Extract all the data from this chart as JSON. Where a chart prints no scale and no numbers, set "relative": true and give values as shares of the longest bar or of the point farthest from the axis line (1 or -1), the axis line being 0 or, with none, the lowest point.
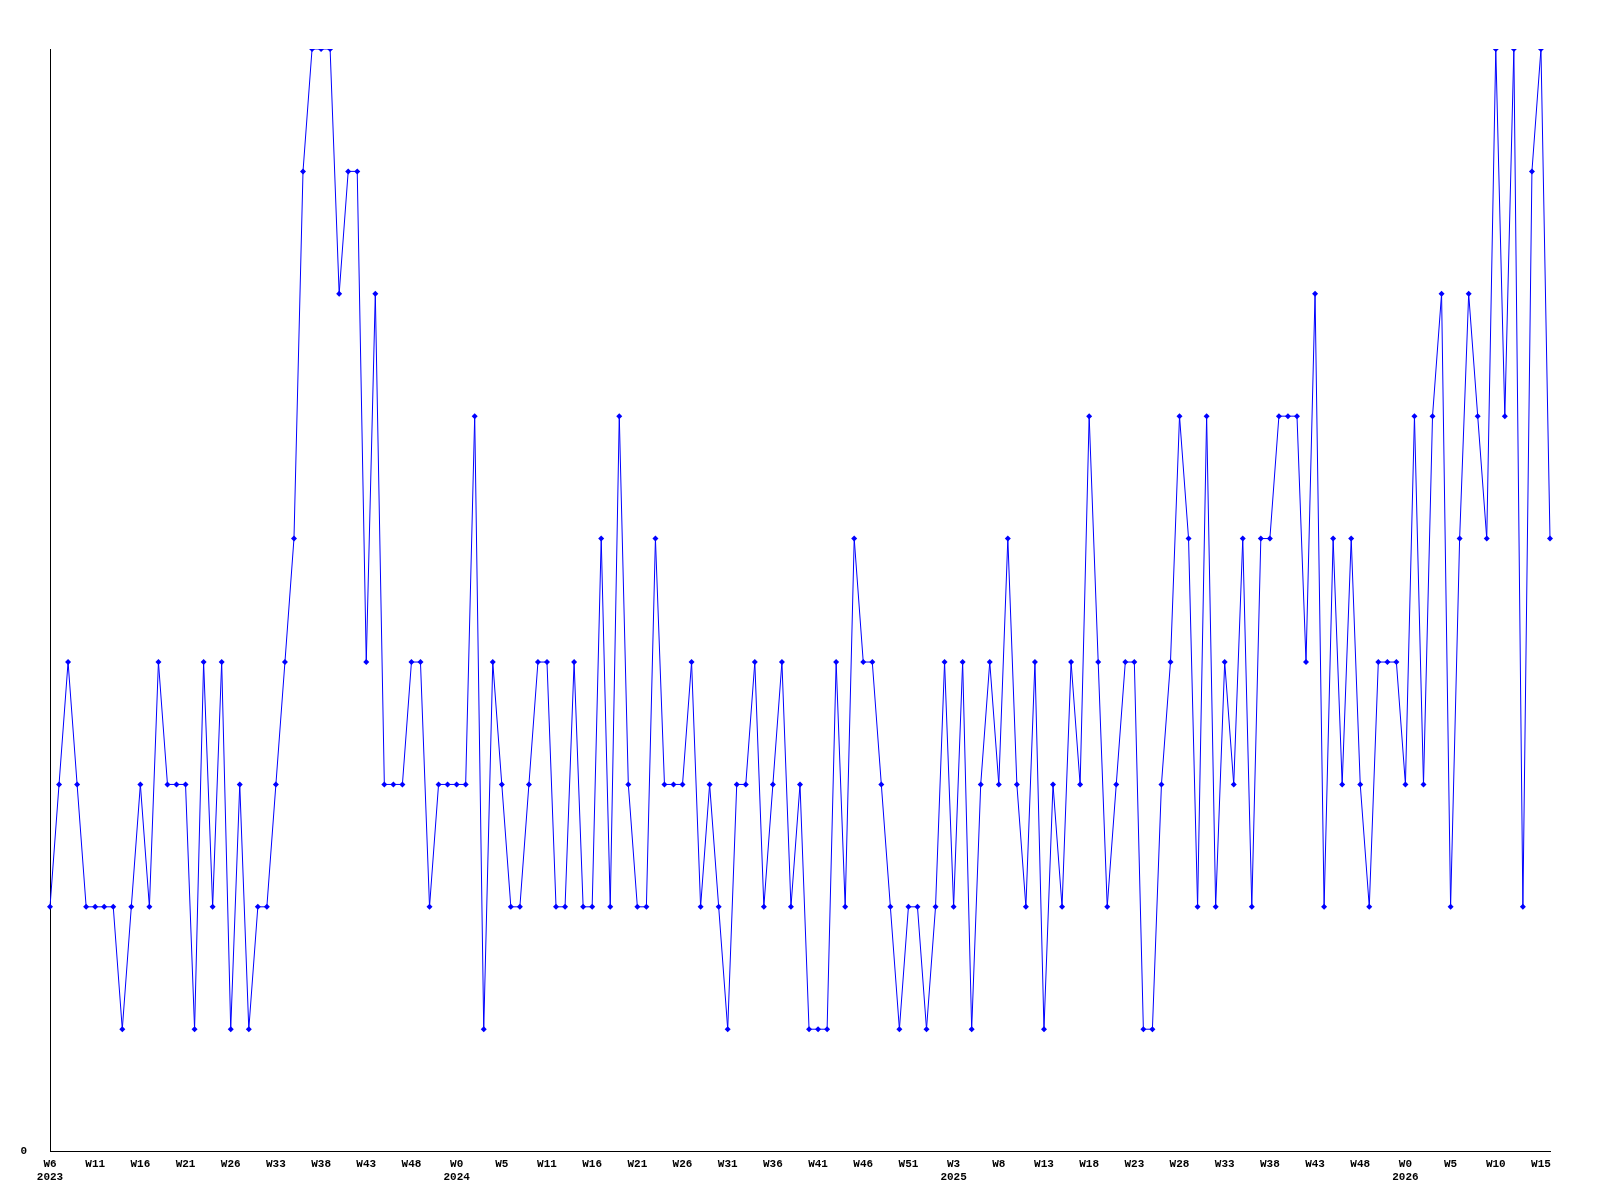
{
  "chart_data": {
    "type": "line",
    "relative": true,
    "marker": "diamond",
    "grid": false,
    "legend": false,
    "categories": [
      "W6\n2023",
      null,
      null,
      null,
      null,
      "W11",
      null,
      null,
      null,
      null,
      "W16",
      null,
      null,
      null,
      null,
      "W21",
      null,
      null,
      null,
      null,
      "W26",
      null,
      null,
      null,
      null,
      "W33",
      null,
      null,
      null,
      null,
      "W38",
      null,
      null,
      null,
      null,
      "W43",
      null,
      null,
      null,
      null,
      "W48",
      null,
      null,
      null,
      null,
      "W0\n2024",
      null,
      null,
      null,
      null,
      "W5",
      null,
      null,
      null,
      null,
      "W11",
      null,
      null,
      null,
      null,
      "W16",
      null,
      null,
      null,
      null,
      "W21",
      null,
      null,
      null,
      null,
      "W26",
      null,
      null,
      null,
      null,
      "W31",
      null,
      null,
      null,
      null,
      "W36",
      null,
      null,
      null,
      null,
      "W41",
      null,
      null,
      null,
      null,
      "W46",
      null,
      null,
      null,
      null,
      "W51",
      null,
      null,
      null,
      null,
      "W3\n2025",
      null,
      null,
      null,
      null,
      "W8",
      null,
      null,
      null,
      null,
      "W13",
      null,
      null,
      null,
      null,
      "W18",
      null,
      null,
      null,
      null,
      "W23",
      null,
      null,
      null,
      null,
      "W28",
      null,
      null,
      null,
      null,
      "W33",
      null,
      null,
      null,
      null,
      "W38",
      null,
      null,
      null,
      null,
      "W43",
      null,
      null,
      null,
      null,
      "W48",
      null,
      null,
      null,
      null,
      "W0\n2026",
      null,
      null,
      null,
      null,
      "W5",
      null,
      null,
      null,
      null,
      "W10",
      null,
      null,
      null,
      null,
      "W15",
      null
    ],
    "series": [
      {
        "color": "#0000ff",
        "values": [
          0.222,
          0.333,
          0.444,
          0.333,
          0.222,
          0.222,
          0.222,
          0.222,
          0.111,
          0.222,
          0.333,
          0.222,
          0.444,
          0.333,
          0.333,
          0.333,
          0.111,
          0.444,
          0.222,
          0.444,
          0.111,
          0.333,
          0.111,
          0.222,
          0.222,
          0.333,
          0.444,
          0.556,
          0.889,
          1,
          1,
          1,
          0.778,
          0.889,
          0.889,
          0.444,
          0.778,
          0.333,
          0.333,
          0.333,
          0.444,
          0.444,
          0.222,
          0.333,
          0.333,
          0.333,
          0.333,
          0.667,
          0.111,
          0.444,
          0.333,
          0.222,
          0.222,
          0.333,
          0.444,
          0.444,
          0.222,
          0.222,
          0.444,
          0.222,
          0.222,
          0.556,
          0.222,
          0.667,
          0.333,
          0.222,
          0.222,
          0.556,
          0.333,
          0.333,
          0.333,
          0.444,
          0.222,
          0.333,
          0.222,
          0.111,
          0.333,
          0.333,
          0.444,
          0.222,
          0.333,
          0.444,
          0.222,
          0.333,
          0.111,
          0.111,
          0.111,
          0.444,
          0.222,
          0.556,
          0.444,
          0.444,
          0.333,
          0.222,
          0.111,
          0.222,
          0.222,
          0.111,
          0.222,
          0.444,
          0.222,
          0.444,
          0.111,
          0.333,
          0.444,
          0.333,
          0.556,
          0.333,
          0.222,
          0.444,
          0.111,
          0.333,
          0.222,
          0.444,
          0.333,
          0.667,
          0.444,
          0.222,
          0.333,
          0.444,
          0.444,
          0.111,
          0.111,
          0.333,
          0.444,
          0.667,
          0.556,
          0.222,
          0.667,
          0.222,
          0.444,
          0.333,
          0.556,
          0.222,
          0.556,
          0.556,
          0.667,
          0.667,
          0.667,
          0.444,
          0.778,
          0.222,
          0.556,
          0.333,
          0.556,
          0.333,
          0.222,
          0.444,
          0.444,
          0.444,
          0.333,
          0.667,
          0.333,
          0.667,
          0.778,
          0.222,
          0.556,
          0.778,
          0.667,
          0.556,
          1,
          0.667,
          1,
          0.222,
          0.889,
          1,
          0.556
        ]
      }
    ],
    "annotations": [
      "0"
    ]
  }
}
